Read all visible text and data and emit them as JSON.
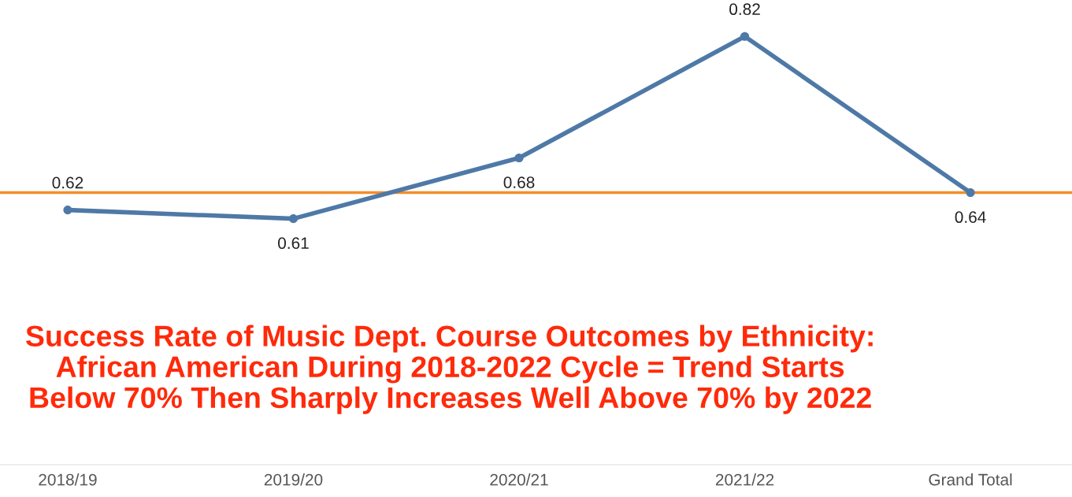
{
  "chart_data": {
    "type": "line",
    "title": "Success Rate of Music Dept. Course Outcomes by Ethnicity: African American During 2018-2022 Cycle = Trend Starts Below 70% Then Sharply Increases Well Above 70% by 2022",
    "categories": [
      "2018/19",
      "2019/20",
      "2020/21",
      "2021/22",
      "Grand Total"
    ],
    "values": [
      0.62,
      0.61,
      0.68,
      0.82,
      0.64
    ],
    "color": "#4e79a7",
    "marker": "circle",
    "data_labels": true,
    "tick_labels": "x",
    "ref_lines": [
      {
        "axis": "y",
        "value": 0.64,
        "color": "#f28e2b"
      }
    ]
  }
}
